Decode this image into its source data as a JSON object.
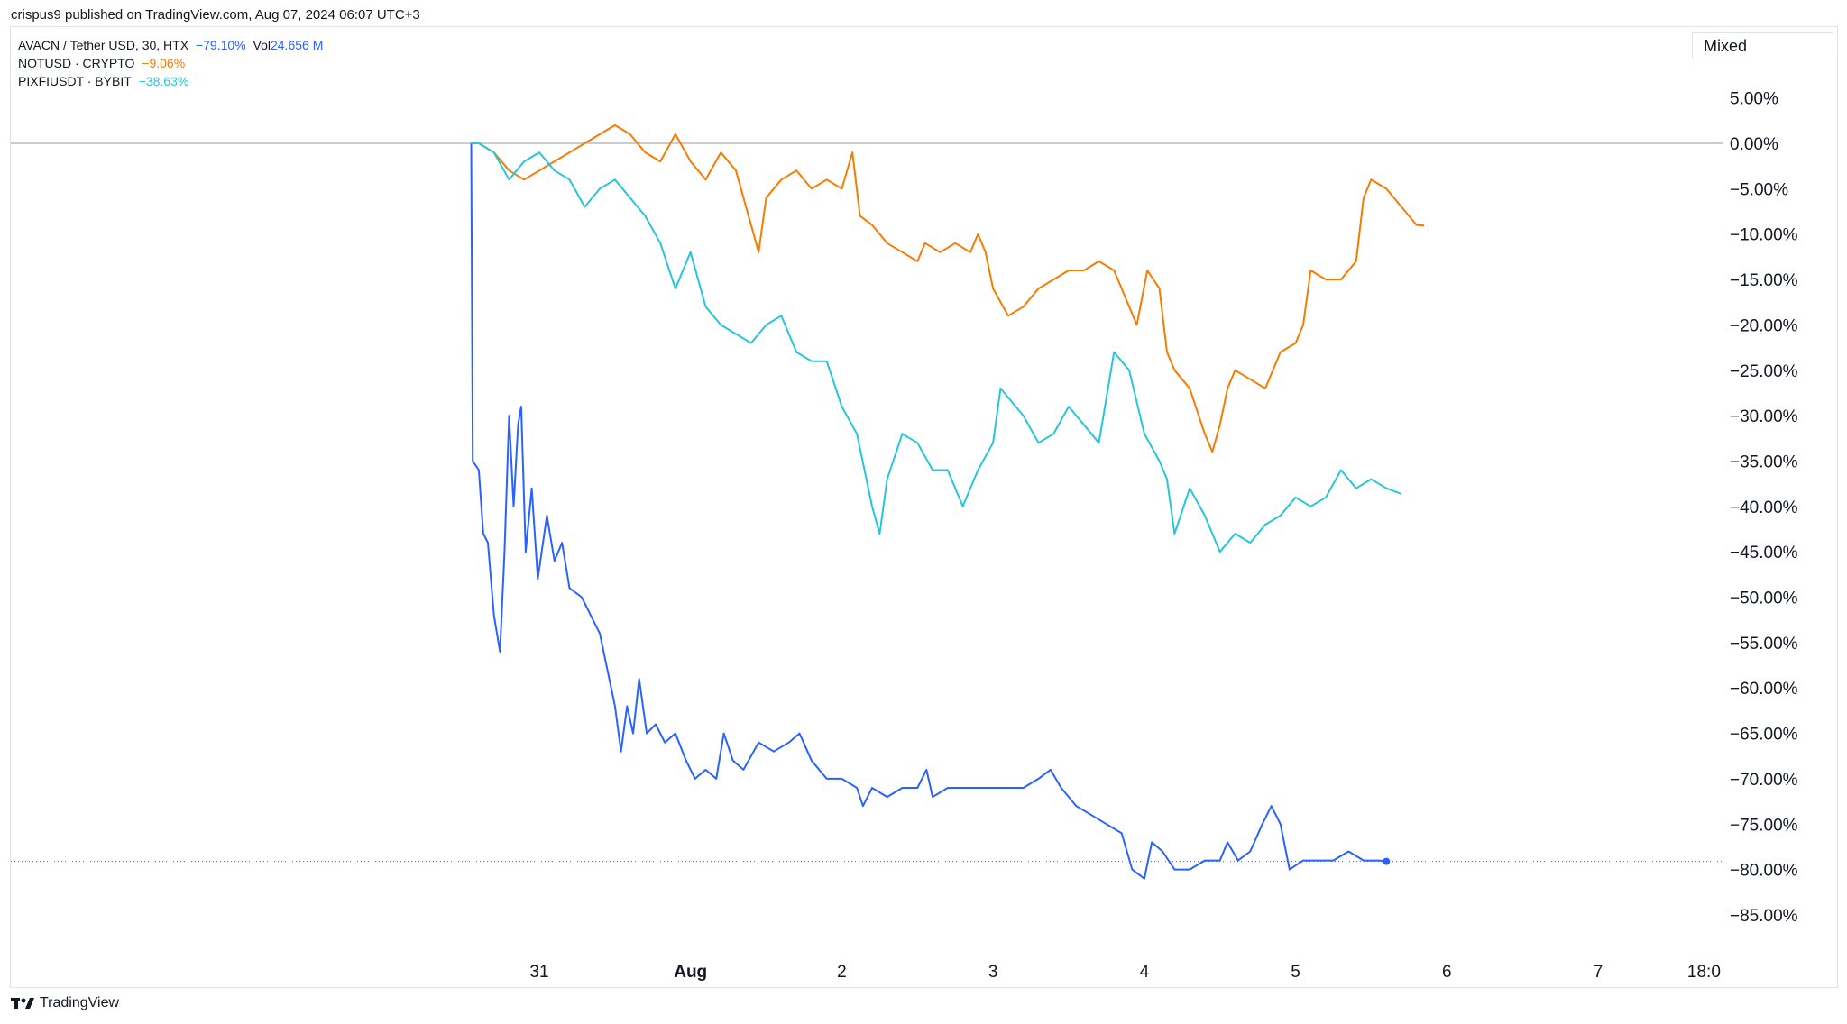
{
  "header": {
    "publish_text": "crispus9 published on TradingView.com, Aug 07, 2024 06:07 UTC+3"
  },
  "legend": [
    {
      "symbol": "AVACN / Tether USD, 30, HTX",
      "change": "−79.10%",
      "vol_label": "Vol",
      "vol_value": "24.656 M",
      "color": "#2962ff"
    },
    {
      "symbol": "NOTUSD · CRYPTO",
      "change": "−9.06%",
      "color": "#f57c00"
    },
    {
      "symbol": "PIXFIUSDT · BYBIT",
      "change": "−38.63%",
      "color": "#26c6da"
    }
  ],
  "toolbar": {
    "scale_mode_label": "Mixed"
  },
  "footer": {
    "brand": "TradingView"
  },
  "chart_data": {
    "type": "line",
    "y_unit": "%",
    "ylim": [
      -88,
      8
    ],
    "y_ticks": [
      "5.00%",
      "0.00%",
      "−5.00%",
      "−10.00%",
      "−15.00%",
      "−20.00%",
      "−25.00%",
      "−30.00%",
      "−35.00%",
      "−40.00%",
      "−45.00%",
      "−50.00%",
      "−55.00%",
      "−60.00%",
      "−65.00%",
      "−70.00%",
      "−75.00%",
      "−80.00%",
      "−85.00%"
    ],
    "y_tick_values": [
      5,
      0,
      -5,
      -10,
      -15,
      -20,
      -25,
      -30,
      -35,
      -40,
      -45,
      -50,
      -55,
      -60,
      -65,
      -70,
      -75,
      -80,
      -85
    ],
    "x_ticks": [
      "31",
      "Aug",
      "2",
      "3",
      "4",
      "5",
      "6",
      "7",
      "18:0"
    ],
    "x_tick_values": [
      1,
      2,
      3,
      4,
      5,
      6,
      7,
      8,
      8.7
    ],
    "xlim": [
      -2.4,
      8.8
    ],
    "grid": false,
    "series": [
      {
        "name": "AVACN / Tether USD, 30, HTX",
        "color": "#2962ff",
        "points": [
          [
            0.55,
            0
          ],
          [
            0.56,
            -35
          ],
          [
            0.6,
            -36
          ],
          [
            0.63,
            -43
          ],
          [
            0.66,
            -44
          ],
          [
            0.7,
            -52
          ],
          [
            0.74,
            -56
          ],
          [
            0.77,
            -45
          ],
          [
            0.8,
            -30
          ],
          [
            0.83,
            -40
          ],
          [
            0.86,
            -31
          ],
          [
            0.88,
            -29
          ],
          [
            0.91,
            -45
          ],
          [
            0.95,
            -38
          ],
          [
            0.99,
            -48
          ],
          [
            1.05,
            -41
          ],
          [
            1.1,
            -46
          ],
          [
            1.15,
            -44
          ],
          [
            1.2,
            -49
          ],
          [
            1.28,
            -50
          ],
          [
            1.34,
            -52
          ],
          [
            1.4,
            -54
          ],
          [
            1.45,
            -58
          ],
          [
            1.5,
            -62
          ],
          [
            1.54,
            -67
          ],
          [
            1.58,
            -62
          ],
          [
            1.62,
            -65
          ],
          [
            1.66,
            -59
          ],
          [
            1.71,
            -65
          ],
          [
            1.77,
            -64
          ],
          [
            1.83,
            -66
          ],
          [
            1.9,
            -65
          ],
          [
            1.97,
            -68
          ],
          [
            2.03,
            -70
          ],
          [
            2.1,
            -69
          ],
          [
            2.17,
            -70
          ],
          [
            2.22,
            -65
          ],
          [
            2.28,
            -68
          ],
          [
            2.35,
            -69
          ],
          [
            2.45,
            -66
          ],
          [
            2.55,
            -67
          ],
          [
            2.65,
            -66
          ],
          [
            2.72,
            -65
          ],
          [
            2.8,
            -68
          ],
          [
            2.9,
            -70
          ],
          [
            3.0,
            -70
          ],
          [
            3.1,
            -71
          ],
          [
            3.14,
            -73
          ],
          [
            3.2,
            -71
          ],
          [
            3.3,
            -72
          ],
          [
            3.4,
            -71
          ],
          [
            3.5,
            -71
          ],
          [
            3.56,
            -69
          ],
          [
            3.6,
            -72
          ],
          [
            3.7,
            -71
          ],
          [
            3.8,
            -71
          ],
          [
            3.9,
            -71
          ],
          [
            4.0,
            -71
          ],
          [
            4.1,
            -71
          ],
          [
            4.2,
            -71
          ],
          [
            4.3,
            -70
          ],
          [
            4.38,
            -69
          ],
          [
            4.45,
            -71
          ],
          [
            4.55,
            -73
          ],
          [
            4.65,
            -74
          ],
          [
            4.75,
            -75
          ],
          [
            4.85,
            -76
          ],
          [
            4.92,
            -80
          ],
          [
            5.0,
            -81
          ],
          [
            5.05,
            -77
          ],
          [
            5.12,
            -78
          ],
          [
            5.2,
            -80
          ],
          [
            5.3,
            -80
          ],
          [
            5.4,
            -79
          ],
          [
            5.5,
            -79
          ],
          [
            5.55,
            -77
          ],
          [
            5.62,
            -79
          ],
          [
            5.7,
            -78
          ],
          [
            5.78,
            -75
          ],
          [
            5.84,
            -73
          ],
          [
            5.9,
            -75
          ],
          [
            5.96,
            -80
          ],
          [
            6.05,
            -79
          ],
          [
            6.15,
            -79
          ],
          [
            6.25,
            -79
          ],
          [
            6.35,
            -78
          ],
          [
            6.45,
            -79
          ],
          [
            6.55,
            -79
          ],
          [
            6.6,
            -79.1
          ]
        ]
      },
      {
        "name": "NOTUSD · CRYPTO",
        "color": "#f57c00",
        "points": [
          [
            0.55,
            0
          ],
          [
            0.6,
            0
          ],
          [
            0.7,
            -1
          ],
          [
            0.8,
            -3
          ],
          [
            0.9,
            -4
          ],
          [
            1.0,
            -3
          ],
          [
            1.1,
            -2
          ],
          [
            1.2,
            -1
          ],
          [
            1.3,
            0
          ],
          [
            1.4,
            1
          ],
          [
            1.5,
            2
          ],
          [
            1.6,
            1
          ],
          [
            1.7,
            -1
          ],
          [
            1.8,
            -2
          ],
          [
            1.9,
            1
          ],
          [
            2.0,
            -2
          ],
          [
            2.1,
            -4
          ],
          [
            2.2,
            -1
          ],
          [
            2.3,
            -3
          ],
          [
            2.4,
            -9
          ],
          [
            2.45,
            -12
          ],
          [
            2.5,
            -6
          ],
          [
            2.6,
            -4
          ],
          [
            2.7,
            -3
          ],
          [
            2.8,
            -5
          ],
          [
            2.9,
            -4
          ],
          [
            3.0,
            -5
          ],
          [
            3.07,
            -1
          ],
          [
            3.12,
            -8
          ],
          [
            3.2,
            -9
          ],
          [
            3.3,
            -11
          ],
          [
            3.4,
            -12
          ],
          [
            3.5,
            -13
          ],
          [
            3.55,
            -11
          ],
          [
            3.65,
            -12
          ],
          [
            3.75,
            -11
          ],
          [
            3.85,
            -12
          ],
          [
            3.9,
            -10
          ],
          [
            3.95,
            -12
          ],
          [
            4.0,
            -16
          ],
          [
            4.1,
            -19
          ],
          [
            4.2,
            -18
          ],
          [
            4.3,
            -16
          ],
          [
            4.4,
            -15
          ],
          [
            4.5,
            -14
          ],
          [
            4.6,
            -14
          ],
          [
            4.7,
            -13
          ],
          [
            4.8,
            -14
          ],
          [
            4.9,
            -18
          ],
          [
            4.95,
            -20
          ],
          [
            5.02,
            -14
          ],
          [
            5.1,
            -16
          ],
          [
            5.15,
            -23
          ],
          [
            5.2,
            -25
          ],
          [
            5.3,
            -27
          ],
          [
            5.4,
            -32
          ],
          [
            5.45,
            -34
          ],
          [
            5.5,
            -31
          ],
          [
            5.55,
            -27
          ],
          [
            5.6,
            -25
          ],
          [
            5.7,
            -26
          ],
          [
            5.8,
            -27
          ],
          [
            5.9,
            -23
          ],
          [
            6.0,
            -22
          ],
          [
            6.05,
            -20
          ],
          [
            6.1,
            -14
          ],
          [
            6.2,
            -15
          ],
          [
            6.3,
            -15
          ],
          [
            6.4,
            -13
          ],
          [
            6.45,
            -6
          ],
          [
            6.5,
            -4
          ],
          [
            6.6,
            -5
          ],
          [
            6.7,
            -7
          ],
          [
            6.8,
            -9
          ],
          [
            6.85,
            -9.06
          ]
        ]
      },
      {
        "name": "PIXFIUSDT · BYBIT",
        "color": "#26c6da",
        "points": [
          [
            0.55,
            0
          ],
          [
            0.6,
            0
          ],
          [
            0.7,
            -1
          ],
          [
            0.8,
            -4
          ],
          [
            0.9,
            -2
          ],
          [
            1.0,
            -1
          ],
          [
            1.1,
            -3
          ],
          [
            1.2,
            -4
          ],
          [
            1.3,
            -7
          ],
          [
            1.4,
            -5
          ],
          [
            1.5,
            -4
          ],
          [
            1.6,
            -6
          ],
          [
            1.7,
            -8
          ],
          [
            1.8,
            -11
          ],
          [
            1.9,
            -16
          ],
          [
            2.0,
            -12
          ],
          [
            2.1,
            -18
          ],
          [
            2.2,
            -20
          ],
          [
            2.3,
            -21
          ],
          [
            2.4,
            -22
          ],
          [
            2.5,
            -20
          ],
          [
            2.6,
            -19
          ],
          [
            2.7,
            -23
          ],
          [
            2.8,
            -24
          ],
          [
            2.9,
            -24
          ],
          [
            3.0,
            -29
          ],
          [
            3.1,
            -32
          ],
          [
            3.15,
            -36
          ],
          [
            3.2,
            -40
          ],
          [
            3.25,
            -43
          ],
          [
            3.3,
            -37
          ],
          [
            3.4,
            -32
          ],
          [
            3.5,
            -33
          ],
          [
            3.6,
            -36
          ],
          [
            3.7,
            -36
          ],
          [
            3.8,
            -40
          ],
          [
            3.9,
            -36
          ],
          [
            4.0,
            -33
          ],
          [
            4.05,
            -27
          ],
          [
            4.1,
            -28
          ],
          [
            4.2,
            -30
          ],
          [
            4.3,
            -33
          ],
          [
            4.4,
            -32
          ],
          [
            4.5,
            -29
          ],
          [
            4.6,
            -31
          ],
          [
            4.7,
            -33
          ],
          [
            4.8,
            -23
          ],
          [
            4.9,
            -25
          ],
          [
            5.0,
            -32
          ],
          [
            5.1,
            -35
          ],
          [
            5.15,
            -37
          ],
          [
            5.2,
            -43
          ],
          [
            5.3,
            -38
          ],
          [
            5.4,
            -41
          ],
          [
            5.5,
            -45
          ],
          [
            5.6,
            -43
          ],
          [
            5.7,
            -44
          ],
          [
            5.8,
            -42
          ],
          [
            5.9,
            -41
          ],
          [
            6.0,
            -39
          ],
          [
            6.1,
            -40
          ],
          [
            6.2,
            -39
          ],
          [
            6.3,
            -36
          ],
          [
            6.4,
            -38
          ],
          [
            6.5,
            -37
          ],
          [
            6.6,
            -38
          ],
          [
            6.7,
            -38.63
          ]
        ]
      }
    ],
    "last_price_line_value": -79.1
  }
}
